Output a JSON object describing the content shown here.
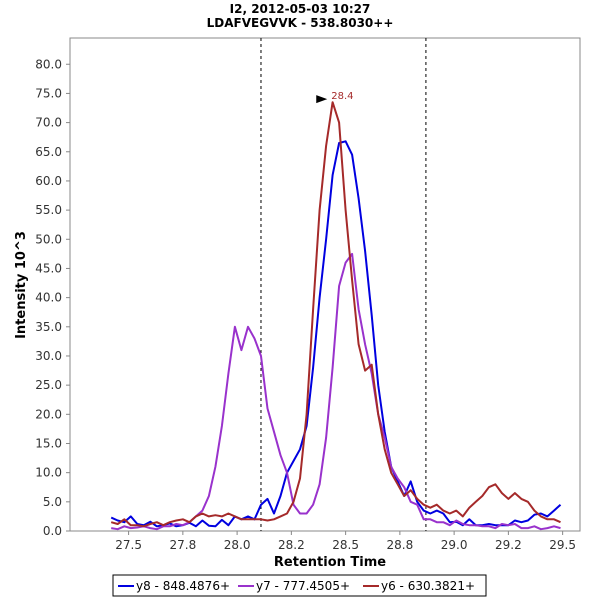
{
  "chart_data": {
    "type": "line",
    "title": "I2, 2012-05-03 10:27",
    "subtitle": "LDAFVEGVVK - 538.8030++",
    "xlabel": "Retention Time",
    "ylabel": "Intensity 10^3",
    "xlim": [
      27.23,
      29.58
    ],
    "ylim": [
      0,
      84.5
    ],
    "x_ticks": [
      "27.5",
      "27.8",
      "28.0",
      "28.2",
      "28.5",
      "28.8",
      "29.0",
      "29.2",
      "29.5"
    ],
    "x_tick_values": [
      27.5,
      27.75,
      28.0,
      28.25,
      28.5,
      28.75,
      29.0,
      29.25,
      29.5
    ],
    "y_ticks": [
      "0.0",
      "5.0",
      "10.0",
      "15.0",
      "20.0",
      "25.0",
      "30.0",
      "35.0",
      "40.0",
      "45.0",
      "50.0",
      "55.0",
      "60.0",
      "65.0",
      "70.0",
      "75.0",
      "80.0"
    ],
    "y_tick_values": [
      0,
      5,
      10,
      15,
      20,
      25,
      30,
      35,
      40,
      45,
      50,
      55,
      60,
      65,
      70,
      75,
      80
    ],
    "vlines": [
      28.11,
      28.87
    ],
    "peak_annotation": {
      "x": 28.42,
      "y": 73.5,
      "label": "28.4",
      "color": "#a52a2a"
    },
    "legend_position": "bottom",
    "series": [
      {
        "name": "y8 - 848.4876+",
        "color": "#0000e0",
        "x": [
          27.42,
          27.45,
          27.48,
          27.51,
          27.54,
          27.57,
          27.6,
          27.63,
          27.66,
          27.69,
          27.72,
          27.75,
          27.78,
          27.81,
          27.84,
          27.87,
          27.9,
          27.93,
          27.96,
          27.99,
          28.02,
          28.05,
          28.08,
          28.11,
          28.14,
          28.17,
          28.2,
          28.23,
          28.26,
          28.29,
          28.32,
          28.35,
          28.38,
          28.41,
          28.44,
          28.47,
          28.5,
          28.53,
          28.56,
          28.59,
          28.62,
          28.65,
          28.68,
          28.71,
          28.74,
          28.77,
          28.8,
          28.83,
          28.86,
          28.89,
          28.92,
          28.95,
          28.98,
          29.01,
          29.04,
          29.07,
          29.1,
          29.13,
          29.16,
          29.19,
          29.22,
          29.25,
          29.28,
          29.31,
          29.34,
          29.37,
          29.4,
          29.43,
          29.46,
          29.49
        ],
        "values": [
          2.3,
          1.8,
          1.5,
          2.5,
          1.2,
          1.0,
          1.6,
          0.8,
          1.0,
          1.3,
          0.8,
          1.0,
          1.4,
          0.8,
          1.8,
          0.9,
          0.8,
          1.9,
          1.0,
          2.5,
          2.0,
          2.5,
          2.0,
          4.5,
          5.5,
          3.0,
          6.0,
          10.0,
          12.0,
          14.0,
          18.0,
          28.0,
          40.0,
          50.0,
          61.0,
          66.5,
          66.8,
          64.5,
          57.0,
          48.0,
          37.0,
          25.0,
          17.0,
          11.0,
          8.5,
          6.0,
          8.5,
          5.0,
          3.5,
          3.0,
          3.5,
          3.0,
          1.5,
          1.6,
          1.0,
          2.0,
          1.0,
          1.0,
          1.2,
          1.0,
          1.0,
          1.0,
          1.8,
          1.5,
          1.8,
          2.8,
          3.0,
          2.5,
          3.5,
          4.5
        ]
      },
      {
        "name": "y7 - 777.4505+",
        "color": "#9932cc",
        "x": [
          27.42,
          27.45,
          27.48,
          27.51,
          27.54,
          27.57,
          27.6,
          27.63,
          27.66,
          27.69,
          27.72,
          27.75,
          27.78,
          27.81,
          27.84,
          27.87,
          27.9,
          27.93,
          27.96,
          27.99,
          28.02,
          28.05,
          28.08,
          28.11,
          28.14,
          28.17,
          28.2,
          28.23,
          28.26,
          28.29,
          28.32,
          28.35,
          28.38,
          28.41,
          28.44,
          28.47,
          28.5,
          28.53,
          28.56,
          28.59,
          28.62,
          28.65,
          28.68,
          28.71,
          28.74,
          28.77,
          28.8,
          28.83,
          28.86,
          28.89,
          28.92,
          28.95,
          28.98,
          29.01,
          29.04,
          29.07,
          29.1,
          29.13,
          29.16,
          29.19,
          29.22,
          29.25,
          29.28,
          29.31,
          29.34,
          29.37,
          29.4,
          29.43,
          29.46,
          29.49
        ],
        "values": [
          0.5,
          0.3,
          0.8,
          0.5,
          0.6,
          0.8,
          0.5,
          0.3,
          0.8,
          0.8,
          1.2,
          1.0,
          1.5,
          2.5,
          3.5,
          6.0,
          11.0,
          18.0,
          27.0,
          35.0,
          31.0,
          35.0,
          33.0,
          30.0,
          21.0,
          17.0,
          13.0,
          10.0,
          4.5,
          3.0,
          3.0,
          4.5,
          8.0,
          16.0,
          28.0,
          42.0,
          46.0,
          47.5,
          38.0,
          32.0,
          27.0,
          20.0,
          16.0,
          11.0,
          9.0,
          7.5,
          5.0,
          4.5,
          2.0,
          2.0,
          1.5,
          1.5,
          1.0,
          1.8,
          1.2,
          1.0,
          1.0,
          0.8,
          0.8,
          0.5,
          1.2,
          1.0,
          1.2,
          0.5,
          0.5,
          0.8,
          0.3,
          0.5,
          0.8,
          0.5
        ]
      },
      {
        "name": "y6 - 630.3821+",
        "color": "#a52a2a",
        "x": [
          27.42,
          27.45,
          27.48,
          27.51,
          27.54,
          27.57,
          27.6,
          27.63,
          27.66,
          27.69,
          27.72,
          27.75,
          27.78,
          27.81,
          27.84,
          27.87,
          27.9,
          27.93,
          27.96,
          27.99,
          28.02,
          28.05,
          28.08,
          28.11,
          28.14,
          28.17,
          28.2,
          28.23,
          28.26,
          28.29,
          28.32,
          28.35,
          28.38,
          28.41,
          28.44,
          28.47,
          28.5,
          28.53,
          28.56,
          28.59,
          28.62,
          28.65,
          28.68,
          28.71,
          28.74,
          28.77,
          28.8,
          28.83,
          28.86,
          28.89,
          28.92,
          28.95,
          28.98,
          29.01,
          29.04,
          29.07,
          29.1,
          29.13,
          29.16,
          29.19,
          29.22,
          29.25,
          29.28,
          29.31,
          29.34,
          29.37,
          29.4,
          29.43,
          29.46,
          29.49
        ],
        "values": [
          1.5,
          1.2,
          2.0,
          1.0,
          1.0,
          0.8,
          1.2,
          1.5,
          1.0,
          1.5,
          1.8,
          2.0,
          1.5,
          2.5,
          3.0,
          2.5,
          2.7,
          2.5,
          3.0,
          2.5,
          2.0,
          2.0,
          2.0,
          2.0,
          1.8,
          2.0,
          2.5,
          3.0,
          5.0,
          9.0,
          20.0,
          38.0,
          55.0,
          66.0,
          73.5,
          70.0,
          55.0,
          43.0,
          32.0,
          27.5,
          28.5,
          20.0,
          14.0,
          10.0,
          8.0,
          6.0,
          7.0,
          5.5,
          4.5,
          4.0,
          4.5,
          3.5,
          3.0,
          3.5,
          2.5,
          4.0,
          5.0,
          6.0,
          7.5,
          8.0,
          6.5,
          5.5,
          6.5,
          5.5,
          5.0,
          3.5,
          2.5,
          2.0,
          2.0,
          1.5
        ]
      }
    ]
  }
}
